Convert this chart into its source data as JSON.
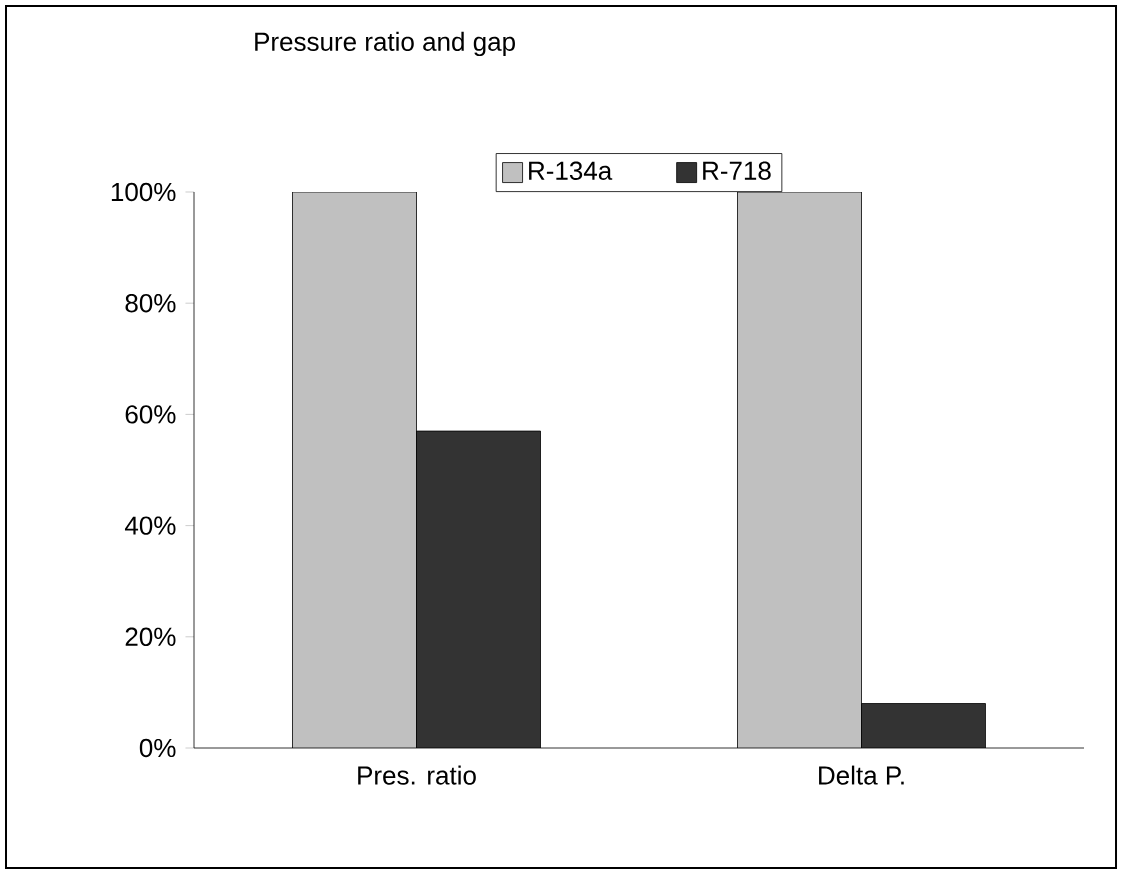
{
  "chart_data": {
    "type": "bar",
    "title": "Pressure ratio and gap",
    "categories": [
      "Pres. ratio",
      "Delta P."
    ],
    "series": [
      {
        "name": "R-134a",
        "color": "#c0c0c0",
        "values": [
          100,
          100
        ]
      },
      {
        "name": "R-718",
        "color": "#333333",
        "values": [
          57,
          8
        ]
      }
    ],
    "ylim": [
      0,
      100
    ],
    "yticks": [
      {
        "value": 0,
        "label": "0%"
      },
      {
        "value": 20,
        "label": "20%"
      },
      {
        "value": 40,
        "label": "40%"
      },
      {
        "value": 60,
        "label": "60%"
      },
      {
        "value": 80,
        "label": "80%"
      },
      {
        "value": 100,
        "label": "100%"
      }
    ],
    "grid": false,
    "legend": "top"
  }
}
